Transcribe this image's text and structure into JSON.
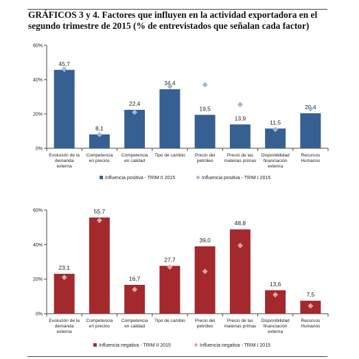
{
  "figure": {
    "title": "GRÁFICOS 3 y 4. Factores que influyen en la actividad exportadora en el segundo trimestre de 2015 (% de entrevistados que señalan cada factor)"
  },
  "colors": {
    "positive": "#376092",
    "positive_marker": "#9DB9D6",
    "negative": "#A3292C",
    "negative_marker": "#E3A5A6",
    "axis": "#444444"
  },
  "chart_data": [
    {
      "type": "bar",
      "title": "",
      "categories": [
        [
          "Evolución de la",
          "demanda",
          "externa"
        ],
        [
          "Competencia",
          "en precios"
        ],
        [
          "Competencia",
          "en calidad"
        ],
        [
          "Tipo de cambio"
        ],
        [
          "Precio del",
          "petróleo"
        ],
        [
          "Precio de las",
          "materias primas"
        ],
        [
          "Disponibilidad",
          "financiación",
          "externa"
        ],
        [
          "Recursos",
          "Humanos"
        ]
      ],
      "series": [
        {
          "name": "Influencia positiva - TRIM II 2015",
          "kind": "bar",
          "values": [
            45.7,
            8.1,
            22.4,
            34.4,
            19.5,
            13.9,
            11.5,
            20.4
          ],
          "labels": [
            "45,7",
            "8,1",
            "22,4",
            "34,4",
            "19,5",
            "13,9",
            "11,5",
            "20,4"
          ]
        },
        {
          "name": "Influencia positiva - TRIM I 2015",
          "kind": "marker",
          "values": [
            46,
            8,
            21,
            36,
            37,
            25.5,
            11,
            23
          ]
        }
      ],
      "yticks": [
        "0%",
        "20%",
        "40%",
        "60%"
      ],
      "ylim": [
        0,
        60
      ],
      "legend": "bottom"
    },
    {
      "type": "bar",
      "title": "",
      "categories": [
        [
          "Evolución de la",
          "demanda",
          "externa"
        ],
        [
          "Competencia",
          "en precios"
        ],
        [
          "Competencia",
          "en calidad"
        ],
        [
          "Tipo de cambio"
        ],
        [
          "Precio del",
          "petróleo"
        ],
        [
          "Precio de las",
          "materias primas"
        ],
        [
          "Disponibilidad",
          "financiación",
          "externa"
        ],
        [
          "Recursos",
          "Humanos"
        ]
      ],
      "series": [
        {
          "name": "Influencia negativa - TRIM II 2015",
          "kind": "bar",
          "values": [
            23.1,
            55.7,
            16.7,
            27.7,
            39.0,
            48.8,
            13.6,
            7.5
          ],
          "labels": [
            "23,1",
            "55,7",
            "16,7",
            "27,7",
            "39,0",
            "48,8",
            "13,6",
            "7,5"
          ]
        },
        {
          "name": "Influencia negativa - TRIM I 2015",
          "kind": "marker",
          "values": [
            21,
            54,
            14,
            27,
            24.5,
            39.5,
            11,
            4.5
          ]
        }
      ],
      "yticks": [
        "0%",
        "20%",
        "40%",
        "60%"
      ],
      "ylim": [
        0,
        60
      ],
      "legend": "bottom"
    }
  ]
}
